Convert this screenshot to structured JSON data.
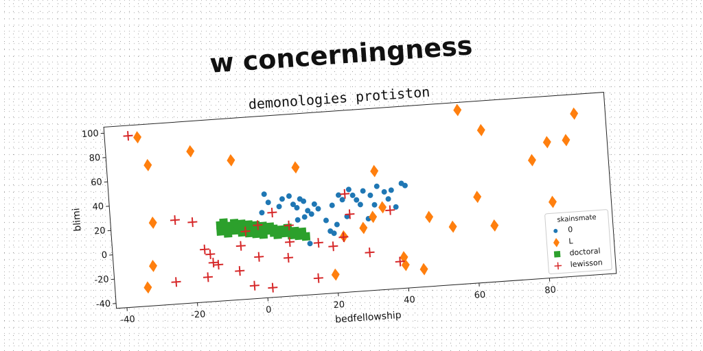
{
  "chart_data": {
    "type": "scatter",
    "title": "w concerningness",
    "subtitle": "demonologies protiston",
    "xlabel": "bedfellowship",
    "ylabel": "blimi",
    "xlim": [
      -43,
      99
    ],
    "ylim": [
      -44,
      105
    ],
    "xticks": [
      -40,
      -20,
      0,
      20,
      40,
      60,
      80
    ],
    "yticks": [
      -40,
      -20,
      0,
      20,
      40,
      60,
      80,
      100
    ],
    "legend_title": "skainsmate",
    "legend": "lower right",
    "series": [
      {
        "name": "0",
        "color": "#1f77b4",
        "marker": "circle",
        "x": [
          1,
          2,
          5,
          0,
          6,
          8,
          9,
          10,
          11,
          12,
          13,
          14,
          10,
          12,
          15,
          16,
          18,
          19,
          20,
          22,
          23,
          25,
          26,
          27,
          28,
          29,
          31,
          32,
          33,
          35,
          36,
          37,
          38,
          40,
          41,
          21,
          20,
          13,
          24,
          30
        ],
        "y": [
          41,
          34,
          30,
          26,
          36,
          38,
          31,
          28,
          35,
          33,
          25,
          22,
          18,
          20,
          30,
          26,
          16,
          7,
          28,
          36,
          32,
          40,
          35,
          31,
          27,
          38,
          34,
          26,
          41,
          36,
          30,
          37,
          23,
          42,
          40,
          12,
          5,
          -2,
          18,
          15
        ]
      },
      {
        "name": "L",
        "color": "#ff7f0e",
        "marker": "diamond",
        "x": [
          -33.7,
          -31.3,
          -19,
          -7.7,
          10.4,
          -31,
          -31.8,
          -33.7,
          32.6,
          57.3,
          63.6,
          90.2,
          82,
          77.4,
          87.4,
          61.2,
          82.4,
          34.2,
          31.3,
          47.2,
          53.7,
          65.5,
          28.4,
          22.7,
          39.3,
          39.6,
          44.7,
          19.6
        ],
        "y": [
          94.8,
          71.4,
          80.3,
          70.6,
          61.1,
          24,
          -11.4,
          -28.7,
          53.6,
          98.8,
          81,
          89.2,
          67.4,
          53.5,
          68,
          26.6,
          18.2,
          23.5,
          16.2,
          12.9,
          3.6,
          2.2,
          7.7,
          1.9,
          -18.6,
          -25,
          -29.5,
          -28.9
        ]
      },
      {
        "name": "doctoral",
        "color": "#2ca02c",
        "marker": "square",
        "x": [
          -12,
          -12,
          -11,
          -10,
          -10,
          -9,
          -8,
          -8,
          -7,
          -6,
          -6,
          -5,
          -4,
          -4,
          -3,
          -2,
          -2,
          -1,
          0,
          0,
          1,
          2,
          3,
          3,
          4,
          5,
          6,
          7,
          8,
          9,
          10,
          11,
          12
        ],
        "y": [
          18,
          13,
          20,
          15,
          11,
          17,
          13,
          19,
          15,
          11,
          18,
          14,
          17,
          10,
          13,
          16,
          9,
          12,
          15,
          8,
          11,
          14,
          9,
          12,
          7,
          11,
          8,
          12,
          6,
          9,
          5,
          8,
          4
        ]
      },
      {
        "name": "lewisson",
        "color": "#d62728",
        "marker": "plus",
        "x": [
          -36.3,
          -24.7,
          -19.8,
          -16.9,
          -15.4,
          -14.7,
          -13.3,
          -16.5,
          -25.6,
          -7.4,
          -6.6,
          -5,
          -1.4,
          2.9,
          -1.7,
          -3.5,
          1.6,
          6.6,
          7.4,
          7.3,
          15.4,
          14.7,
          19.5,
          23.8,
          24.8,
          22.6,
          29.7,
          36.3,
          38.1
        ],
        "y": [
          96.5,
          24.9,
          22.2,
          -0.8,
          -5.1,
          -12.1,
          -14.1,
          -23.7,
          -25.8,
          -20.4,
          0,
          11.6,
          16,
          25.5,
          -10,
          -33.3,
          -36,
          -12.4,
          14,
          0.4,
          -1.9,
          -30.8,
          -5.6,
          36.6,
          19.7,
          1.3,
          -12.7,
          20.7,
          -21.9
        ]
      }
    ]
  }
}
